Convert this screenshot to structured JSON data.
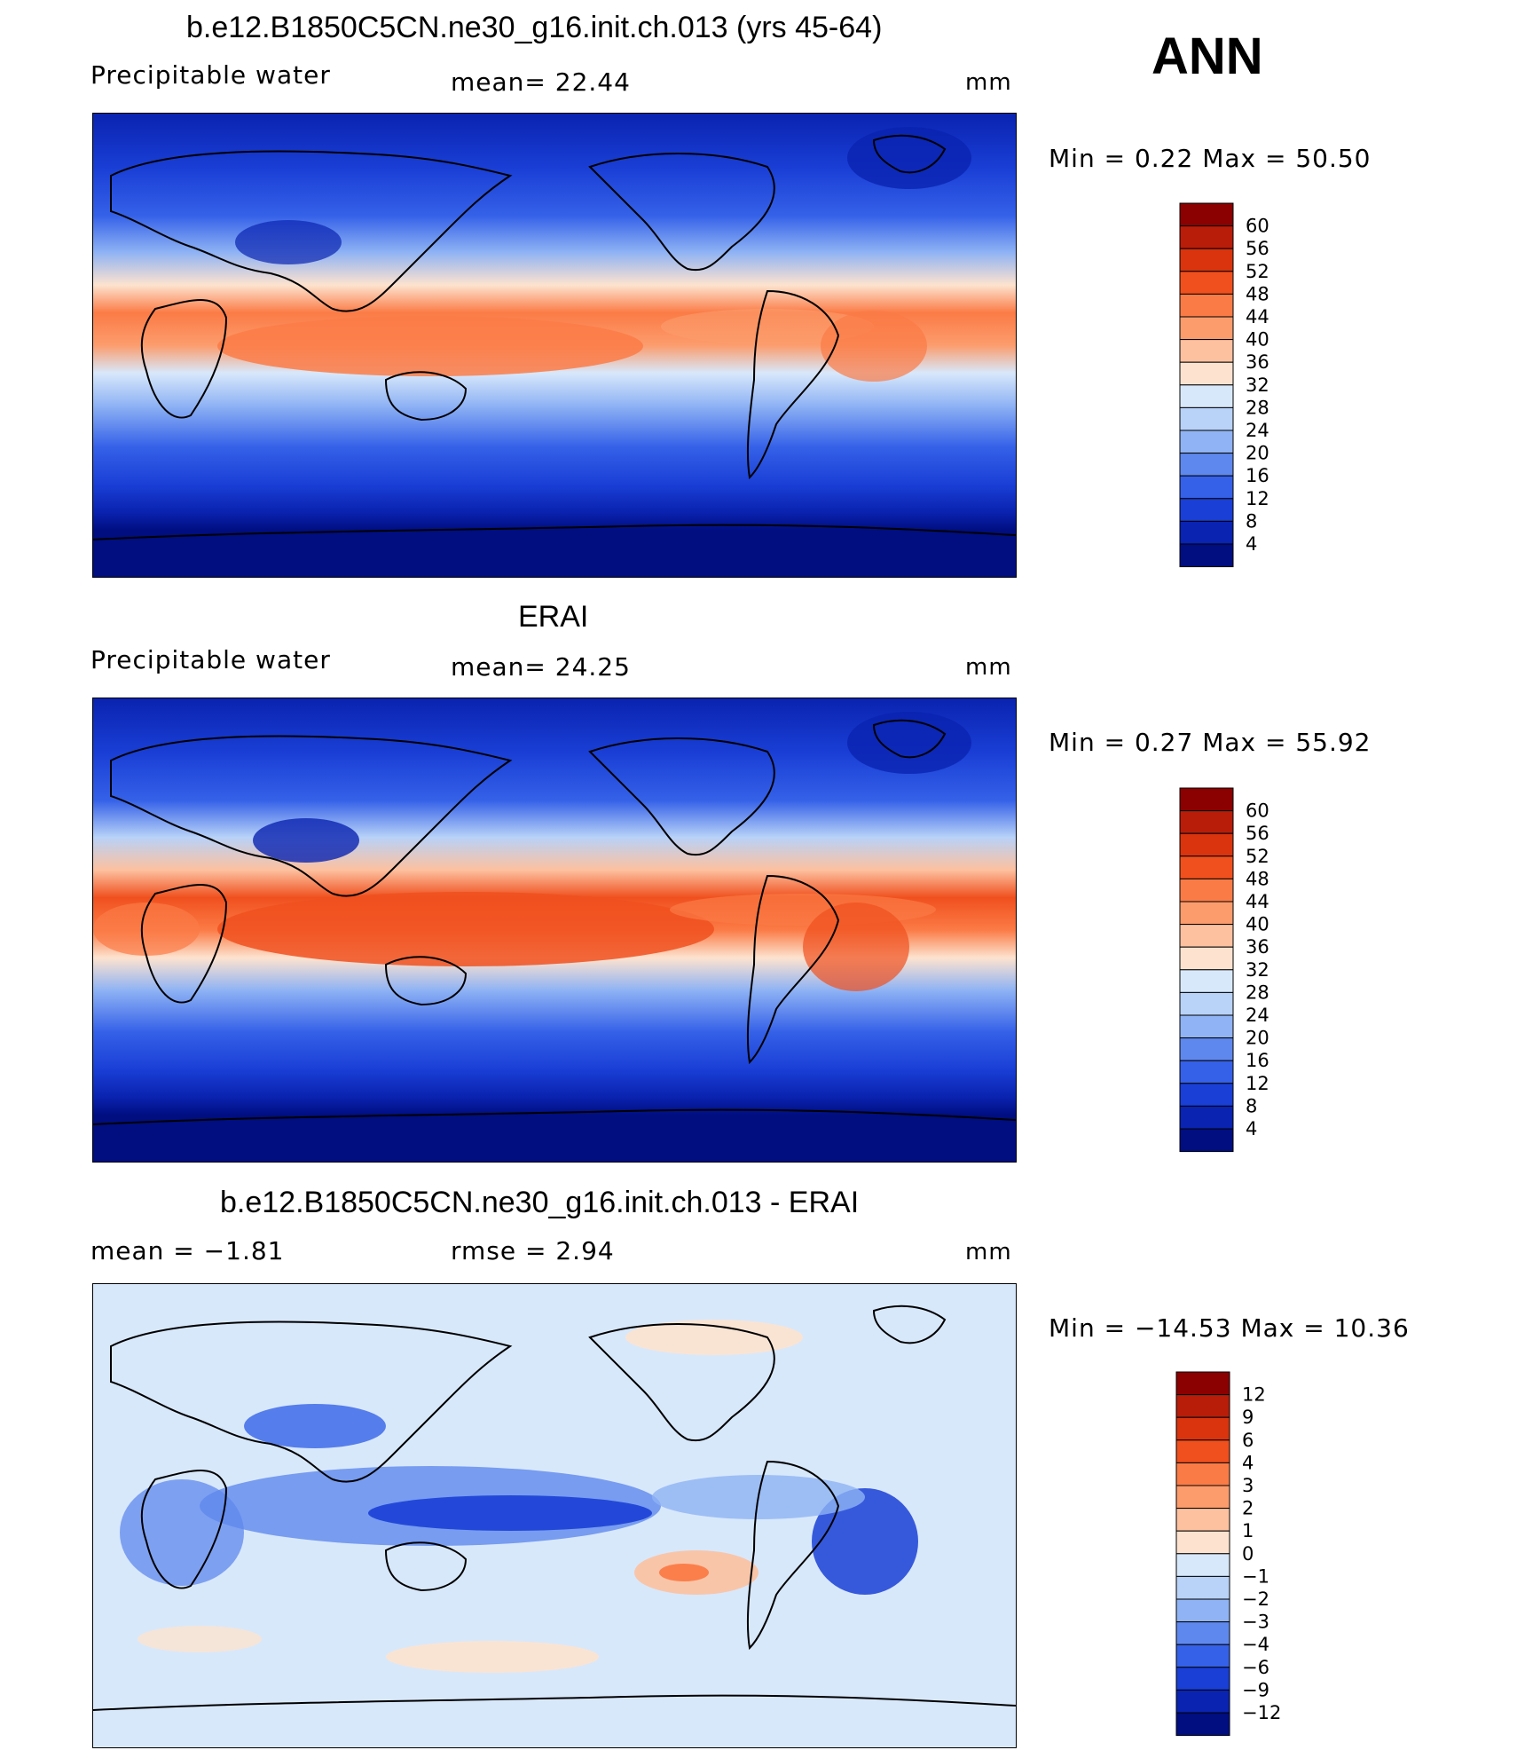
{
  "figure_label": "ANN",
  "panels": [
    {
      "title": "b.e12.B1850C5CN.ne30_g16.init.ch.013 (yrs 45-64)",
      "left_label": "Precipitable  water",
      "center_label": "mean=   22.44",
      "unit": "mm",
      "minmax": "Min  =      0.22  Max  =     50.50",
      "colorbar_labels": [
        "60",
        "56",
        "52",
        "48",
        "44",
        "40",
        "36",
        "32",
        "28",
        "24",
        "20",
        "16",
        "12",
        "8",
        "4"
      ],
      "colors": {
        "ocean_low": "#1a3fd6",
        "tropics": "#ff7a4a",
        "polar": "#000e80"
      }
    },
    {
      "title": "ERAI",
      "left_label": "Precipitable  water",
      "center_label": "mean=   24.25",
      "unit": "mm",
      "minmax": "Min  =      0.27  Max  =     55.92",
      "colorbar_labels": [
        "60",
        "56",
        "52",
        "48",
        "44",
        "40",
        "36",
        "32",
        "28",
        "24",
        "20",
        "16",
        "12",
        "8",
        "4"
      ],
      "colors": {
        "ocean_low": "#1a3fd6",
        "tropics": "#ff6a3a",
        "polar": "#000e80"
      }
    },
    {
      "title": "b.e12.B1850C5CN.ne30_g16.init.ch.013 - ERAI",
      "left_label": "mean  =    −1.81",
      "center_label": "rmse  =     2.94",
      "unit": "mm",
      "minmax": "Min  =  −14.53  Max  =     10.36",
      "colorbar_labels": [
        "12",
        "9",
        "6",
        "4",
        "3",
        "2",
        "1",
        "0",
        "−1",
        "−2",
        "−3",
        "−4",
        "−6",
        "−9",
        "−12"
      ],
      "colors": {
        "neutral": "#d9eafc",
        "negative": "#2452e6",
        "positive": "#fbd0b5"
      }
    }
  ],
  "palette_abs": [
    "#8b0000",
    "#b81d0a",
    "#d9340d",
    "#f0501e",
    "#fb7b46",
    "#fc9c6d",
    "#fdc1a0",
    "#fde3cf",
    "#d8e8fb",
    "#b8d2f8",
    "#8fb3f4",
    "#5f88ee",
    "#3561e8",
    "#1a3fd6",
    "#0a23b0",
    "#000e80"
  ],
  "palette_diff": [
    "#8b0000",
    "#b81d0a",
    "#d9340d",
    "#f0501e",
    "#fb7b46",
    "#fc9c6d",
    "#fdc1a0",
    "#fde3cf",
    "#d8e8fb",
    "#b8d2f8",
    "#8fb3f4",
    "#5f88ee",
    "#3561e8",
    "#1a3fd6",
    "#0a23b0",
    "#000e80"
  ]
}
